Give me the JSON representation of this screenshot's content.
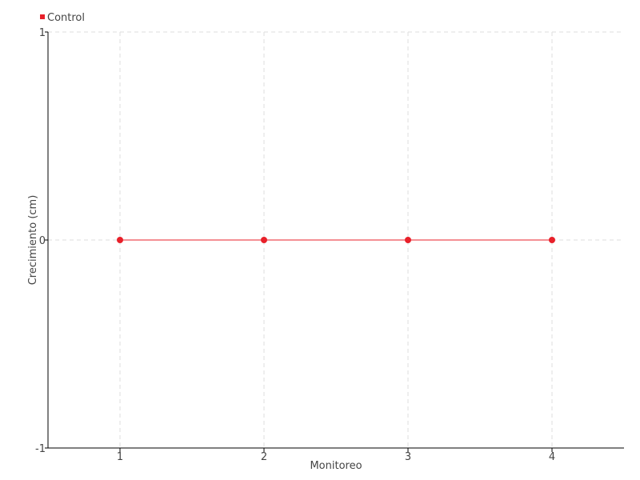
{
  "chart_data": {
    "type": "line",
    "title": "",
    "xlabel": "Monitoreo",
    "ylabel": "Crecimiento (cm)",
    "x": [
      1,
      2,
      3,
      4
    ],
    "xticks": [
      "1",
      "2",
      "3",
      "4"
    ],
    "yticks": [
      "-1",
      "0",
      "1"
    ],
    "xlim": [
      0.5,
      4.5
    ],
    "ylim": [
      -1,
      1
    ],
    "grid": true,
    "legend_position": "top-left",
    "series": [
      {
        "name": "Control",
        "color": "#e8202a",
        "values": [
          0,
          0,
          0,
          0
        ]
      }
    ]
  }
}
